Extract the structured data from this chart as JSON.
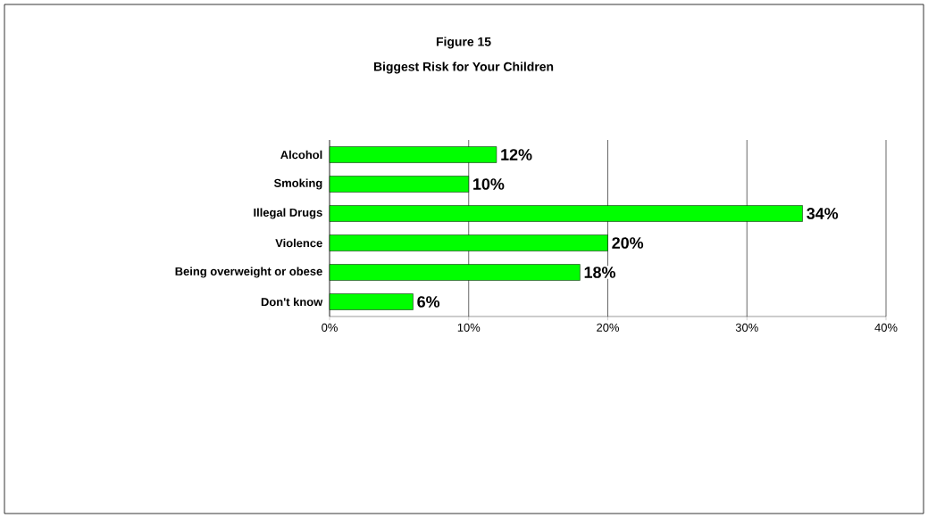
{
  "chart_data": {
    "type": "bar",
    "orientation": "horizontal",
    "title": "Figure 15",
    "subtitle": "Biggest Risk for Your Children",
    "categories": [
      "Alcohol",
      "Smoking",
      "Illegal Drugs",
      "Violence",
      "Being overweight or obese",
      "Don't know"
    ],
    "values": [
      12,
      10,
      34,
      20,
      18,
      6
    ],
    "value_labels": [
      "12%",
      "10%",
      "34%",
      "20%",
      "18%",
      "6%"
    ],
    "color": "#00ff00",
    "xlim": [
      0,
      40
    ],
    "xticks": [
      {
        "value": 0,
        "label": "0%"
      },
      {
        "value": 10,
        "label": "10%"
      },
      {
        "value": 20,
        "label": "20%"
      },
      {
        "value": 30,
        "label": "30%"
      },
      {
        "value": 40,
        "label": "40%"
      }
    ],
    "grid": "x"
  }
}
